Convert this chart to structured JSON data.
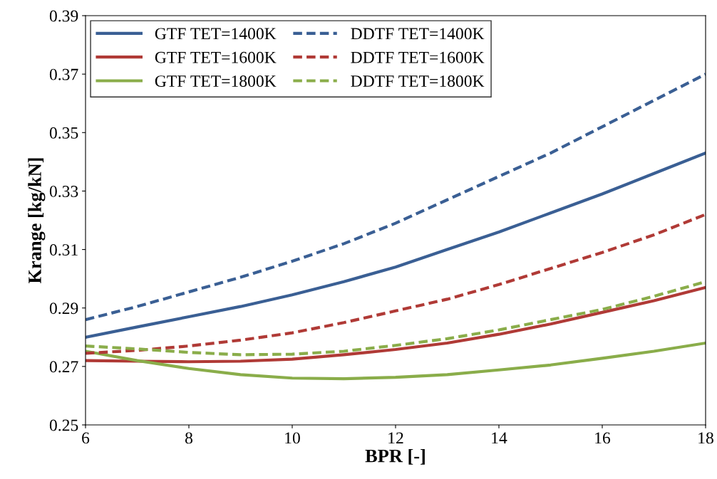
{
  "chart_data": {
    "type": "line",
    "xlabel": "BPR [-]",
    "ylabel": "Krange [kg/kN]",
    "x": [
      6,
      7,
      8,
      9,
      10,
      11,
      12,
      13,
      14,
      15,
      16,
      17,
      18
    ],
    "xlim": [
      6,
      18
    ],
    "xticks": [
      6,
      8,
      10,
      12,
      14,
      16,
      18
    ],
    "ylim": [
      0.25,
      0.39
    ],
    "yticks": [
      0.25,
      0.27,
      0.29,
      0.31,
      0.33,
      0.35,
      0.37,
      0.39
    ],
    "grid": false,
    "legend": "top left",
    "marker": "none",
    "series": [
      {
        "name": "GTF TET=1400K",
        "color": "#3a5f94",
        "line_style": "solid",
        "values": [
          0.28,
          0.2835,
          0.287,
          0.2905,
          0.2945,
          0.299,
          0.304,
          0.31,
          0.316,
          0.3225,
          0.329,
          0.336,
          0.343
        ]
      },
      {
        "name": "GTF TET=1600K",
        "color": "#b03a36",
        "line_style": "solid",
        "values": [
          0.272,
          0.2718,
          0.2716,
          0.2718,
          0.2725,
          0.274,
          0.2758,
          0.278,
          0.281,
          0.2845,
          0.2885,
          0.2925,
          0.297
        ]
      },
      {
        "name": "GTF TET=1800K",
        "color": "#8aad4a",
        "line_style": "solid",
        "values": [
          0.2752,
          0.272,
          0.2693,
          0.2672,
          0.266,
          0.2658,
          0.2663,
          0.2672,
          0.2688,
          0.2705,
          0.2728,
          0.2752,
          0.278
        ]
      },
      {
        "name": "DDTF TET=1400K",
        "color": "#3a5f94",
        "line_style": "dashed",
        "values": [
          0.286,
          0.2905,
          0.2955,
          0.3005,
          0.306,
          0.312,
          0.319,
          0.327,
          0.335,
          0.343,
          0.352,
          0.361,
          0.37
        ]
      },
      {
        "name": "DDTF TET=1600K",
        "color": "#b03a36",
        "line_style": "dashed",
        "values": [
          0.2745,
          0.2755,
          0.277,
          0.279,
          0.2815,
          0.285,
          0.289,
          0.293,
          0.298,
          0.3035,
          0.309,
          0.315,
          0.322
        ]
      },
      {
        "name": "DDTF TET=1800K",
        "color": "#8aad4a",
        "line_style": "dashed",
        "values": [
          0.277,
          0.276,
          0.2748,
          0.274,
          0.2742,
          0.2752,
          0.2772,
          0.2795,
          0.2825,
          0.286,
          0.2895,
          0.294,
          0.299
        ]
      }
    ]
  }
}
